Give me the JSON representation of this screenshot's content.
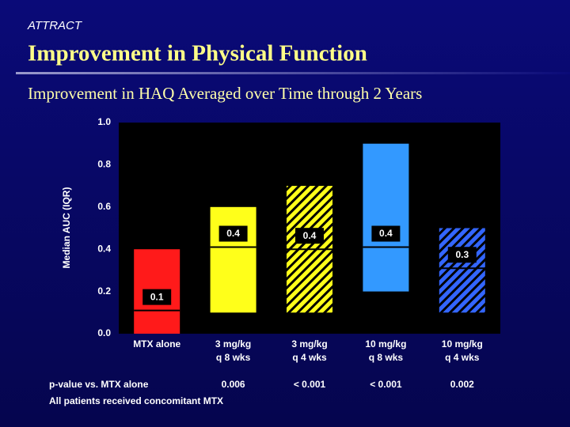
{
  "header": {
    "tag": "ATTRACT",
    "title": "Improvement in Physical Function",
    "subtitle": "Improvement in HAQ Averaged over Time through 2 Years"
  },
  "chart_data": {
    "type": "box",
    "ylabel": "Median AUC (IQR)",
    "categories": [
      [
        "MTX alone"
      ],
      [
        "3 mg/kg",
        "q 8 wks"
      ],
      [
        "3 mg/kg",
        "q 4 wks"
      ],
      [
        "10 mg/kg",
        "q 8 wks"
      ],
      [
        "10 mg/kg",
        "q 4 wks"
      ]
    ],
    "q1": [
      0.0,
      0.1,
      0.1,
      0.2,
      0.1
    ],
    "median": [
      0.11,
      0.41,
      0.4,
      0.41,
      0.31
    ],
    "q3": [
      0.4,
      0.6,
      0.7,
      0.9,
      0.5
    ],
    "value_labels": [
      "0.1",
      "0.4",
      "0.4",
      "0.4",
      "0.3"
    ],
    "colors": [
      "#ff1a1a",
      "#ffff1a",
      "#ffff1a",
      "#3399ff",
      "#3366ff"
    ],
    "hatched": [
      false,
      false,
      true,
      false,
      true
    ],
    "ylim": [
      0,
      1
    ],
    "yticks": [
      {
        "value": 0,
        "label": "0.0"
      },
      0.2,
      0.4,
      0.6,
      0.8,
      {
        "value": 1,
        "label": "1.0"
      }
    ],
    "pvalue_label": "p-value vs. MTX alone",
    "pvalues": [
      "0.006",
      "< 0.001",
      "< 0.001",
      "0.002"
    ],
    "note": "All patients received concomitant MTX"
  }
}
